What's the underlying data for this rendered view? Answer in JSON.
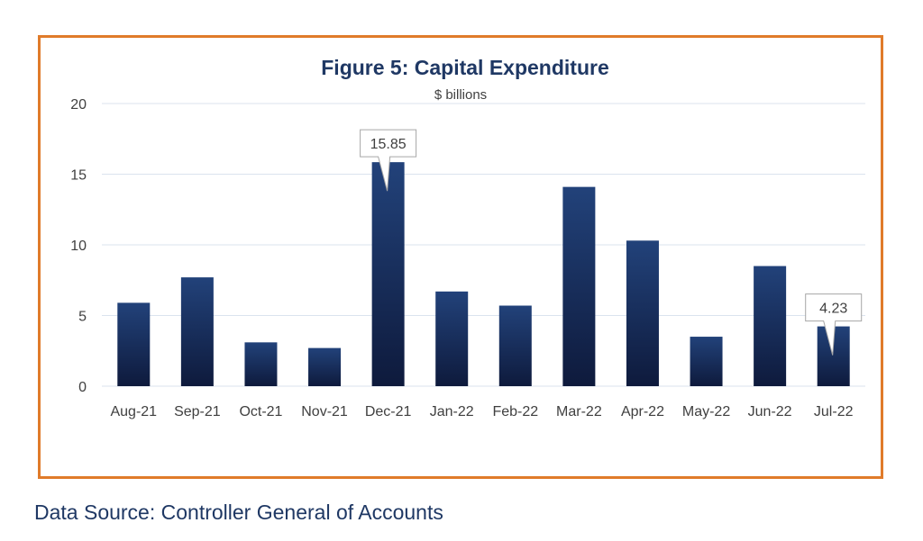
{
  "chart_data": {
    "type": "bar",
    "title": "Figure 5: Capital Expenditure",
    "subtitle": "$ billions",
    "xlabel": "",
    "ylabel": "",
    "categories": [
      "Aug-21",
      "Sep-21",
      "Oct-21",
      "Nov-21",
      "Dec-21",
      "Jan-22",
      "Feb-22",
      "Mar-22",
      "Apr-22",
      "May-22",
      "Jun-22",
      "Jul-22"
    ],
    "values": [
      5.9,
      7.7,
      3.1,
      2.7,
      15.85,
      6.7,
      5.7,
      14.1,
      10.3,
      3.5,
      8.5,
      4.23
    ],
    "ylim": [
      0,
      20
    ],
    "yticks": [
      0,
      5,
      10,
      15,
      20
    ],
    "grid": true,
    "legend": "none",
    "callouts": [
      {
        "category": "Dec-21",
        "label": "15.85"
      },
      {
        "category": "Jul-22",
        "label": "4.23"
      }
    ],
    "colors": {
      "bar_top": "#22427a",
      "bar_bottom": "#0e1a3c",
      "title": "#1f3864",
      "axis_text": "#404040",
      "gridline": "#dbe3ee",
      "frame": "#e07b2a"
    }
  },
  "footer": {
    "source": "Data Source: Controller General of Accounts"
  }
}
